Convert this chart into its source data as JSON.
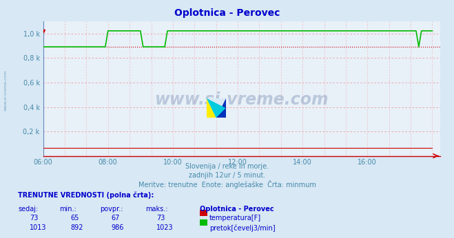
{
  "title": "Oplotnica - Perovec",
  "bg_color": "#d8e8f4",
  "plot_bg_color": "#e8f0f8",
  "title_color": "#0000cc",
  "grid_color": "#ee9999",
  "text_color": "#4488aa",
  "xlim_start": 0,
  "xlim_end": 144,
  "ylim": [
    0,
    1100
  ],
  "yticks": [
    0,
    200,
    400,
    600,
    800,
    1000
  ],
  "ytick_labels": [
    "",
    "0,2 k",
    "0,4 k",
    "0,6 k",
    "0,8 k",
    "1,0 k"
  ],
  "xtick_labels": [
    "06:00",
    "08:00",
    "10:00",
    "12:00",
    "14:00",
    "16:00"
  ],
  "xtick_positions": [
    0,
    24,
    48,
    72,
    96,
    120
  ],
  "subtitle_lines": [
    "Slovenija / reke in morje.",
    "zadnjih 12ur / 5 minut.",
    "Meritve: trenutne  Enote: anglešaške  Črta: minmum"
  ],
  "table_header": "TRENUTNE VREDNOSTI (polna črta):",
  "col_headers": [
    "sedaj:",
    "min.:",
    "povpr.:",
    "maks.:",
    "Oplotnica - Perovec"
  ],
  "temp_row": [
    "73",
    "65",
    "67",
    "73"
  ],
  "flow_row": [
    "1013",
    "892",
    "986",
    "1023"
  ],
  "temp_label": "temperatura[F]",
  "flow_label": "pretok[čevelj3/min]",
  "temp_color": "#cc0000",
  "flow_color": "#00bb00",
  "watermark": "www.si-vreme.com",
  "watermark_color": "#1a3a7a",
  "watermark_alpha": 0.22,
  "side_text": "www.si-vreme.com",
  "flow_min": 892,
  "flow_max": 1023,
  "temp_min": 65,
  "dotted_line_color": "#cc0000",
  "n_points": 145,
  "spine_color": "#6688bb",
  "axis_color": "#cc0000"
}
